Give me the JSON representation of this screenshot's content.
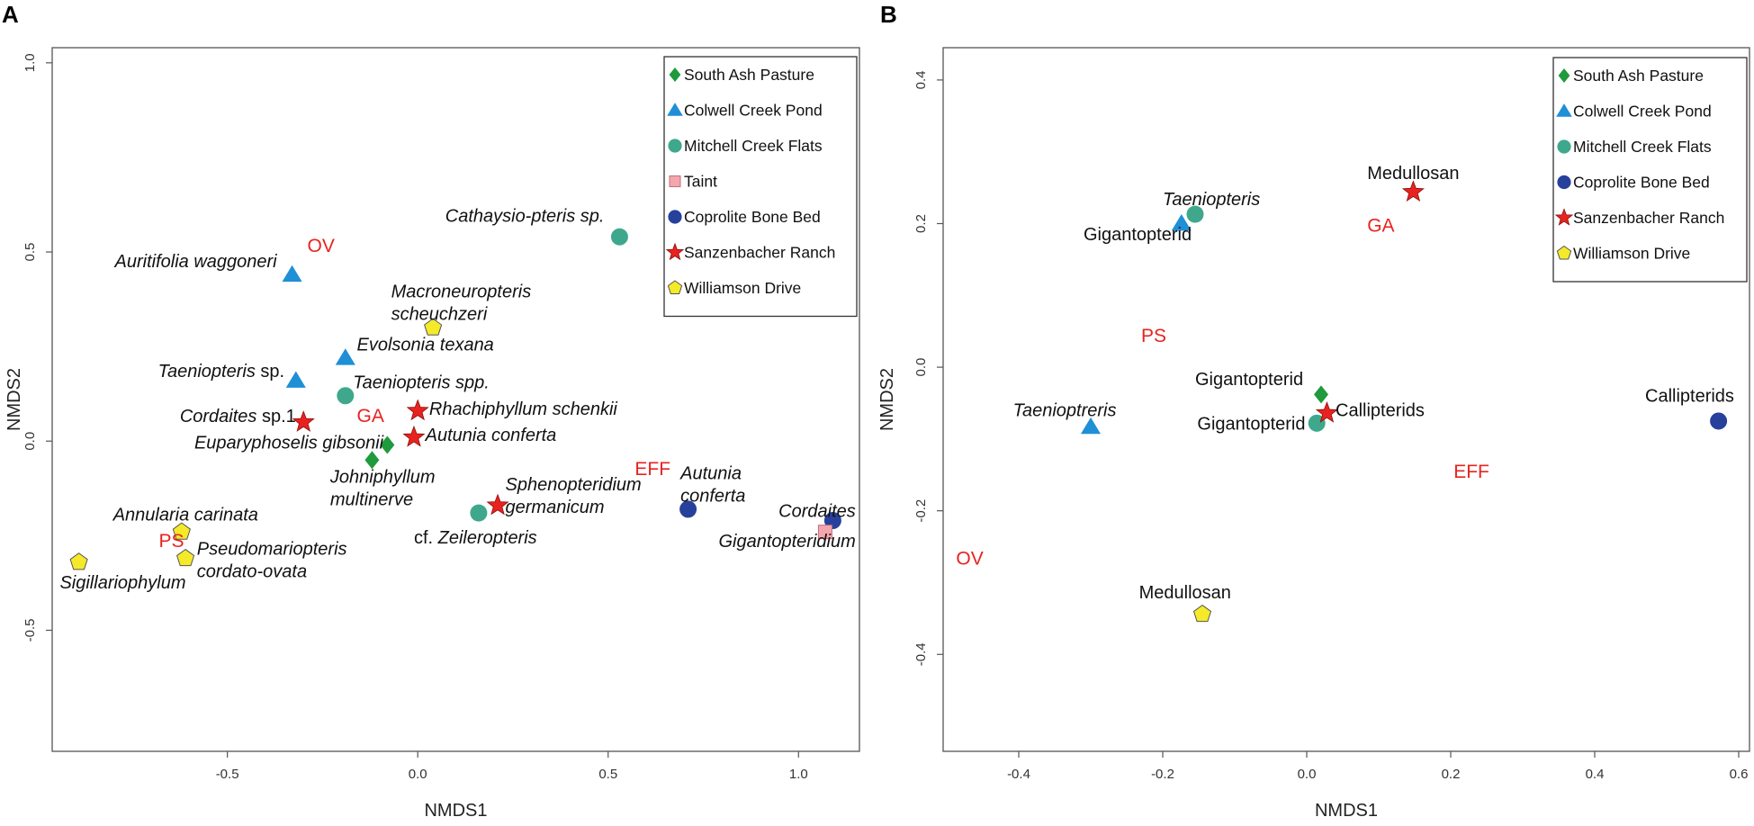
{
  "figure": {
    "colors": {
      "South Ash Pasture": "#1f9a3c",
      "Colwell Creek Pond": "#1f8fd6",
      "Mitchell Creek Flats": "#3fa88c",
      "Taint": "#f4a6ae",
      "Coprolite Bone Bed": "#27409b",
      "Sanzenbacher Ranch": "#e8231f",
      "Williamson Drive": "#f5ea2a",
      "site_label": "#e8231f"
    }
  },
  "chart_data": [
    {
      "panel": "A",
      "type": "scatter",
      "xlabel": "NMDS1",
      "ylabel": "NMDS2",
      "xlim": [
        -0.96,
        1.16
      ],
      "ylim": [
        -0.82,
        1.04
      ],
      "xticks": [
        -0.5,
        0.0,
        0.5,
        1.0
      ],
      "yticks": [
        -0.5,
        0.0,
        0.5,
        1.0
      ],
      "xtick_labels": [
        "-0.5",
        "0.0",
        "0.5",
        "1.0"
      ],
      "ytick_labels": [
        "-0.5",
        "0.0",
        "0.5",
        "1.0"
      ],
      "legend": [
        "South Ash Pasture",
        "Colwell Creek Pond",
        "Mitchell Creek Flats",
        "Taint",
        "Coprolite Bone Bed",
        "Sanzenbacher Ranch",
        "Williamson Drive"
      ],
      "points": [
        {
          "group": "Colwell Creek Pond",
          "x": -0.33,
          "y": 0.44
        },
        {
          "group": "Colwell Creek Pond",
          "x": -0.19,
          "y": 0.22
        },
        {
          "group": "Colwell Creek Pond",
          "x": -0.32,
          "y": 0.16
        },
        {
          "group": "Mitchell Creek Flats",
          "x": -0.19,
          "y": 0.12
        },
        {
          "group": "Mitchell Creek Flats",
          "x": 0.53,
          "y": 0.54
        },
        {
          "group": "Mitchell Creek Flats",
          "x": 0.16,
          "y": -0.19
        },
        {
          "group": "Sanzenbacher Ranch",
          "x": -0.3,
          "y": 0.05
        },
        {
          "group": "Sanzenbacher Ranch",
          "x": 0.0,
          "y": 0.08
        },
        {
          "group": "Sanzenbacher Ranch",
          "x": -0.01,
          "y": 0.01
        },
        {
          "group": "Sanzenbacher Ranch",
          "x": 0.21,
          "y": -0.17
        },
        {
          "group": "South Ash Pasture",
          "x": -0.08,
          "y": -0.01
        },
        {
          "group": "South Ash Pasture",
          "x": -0.12,
          "y": -0.05
        },
        {
          "group": "Williamson Drive",
          "x": 0.04,
          "y": 0.3
        },
        {
          "group": "Williamson Drive",
          "x": -0.62,
          "y": -0.24
        },
        {
          "group": "Williamson Drive",
          "x": -0.61,
          "y": -0.31
        },
        {
          "group": "Williamson Drive",
          "x": -0.89,
          "y": -0.32
        },
        {
          "group": "Coprolite Bone Bed",
          "x": 0.71,
          "y": -0.18
        },
        {
          "group": "Coprolite Bone Bed",
          "x": 1.09,
          "y": -0.21
        },
        {
          "group": "Taint",
          "x": 1.07,
          "y": -0.24
        }
      ],
      "labels": [
        {
          "text": "Auritifolia waggoneri",
          "italic": true,
          "x": -0.37,
          "y": 0.46,
          "anchor": "end"
        },
        {
          "text": "Evolsonia texana",
          "italic": true,
          "x": -0.16,
          "y": 0.24,
          "anchor": "start"
        },
        {
          "text": "Taeniopteris",
          "italic": true,
          "suffix": " sp.",
          "x": -0.35,
          "y": 0.17,
          "anchor": "end"
        },
        {
          "text": "Taeniopteris spp.",
          "italic": true,
          "x": -0.17,
          "y": 0.14,
          "anchor": "start"
        },
        {
          "text": "Cathaysio-pteris sp.",
          "italic": true,
          "x": 0.49,
          "y": 0.58,
          "anchor": "end"
        },
        {
          "text": "Macroneuropteris",
          "italic": true,
          "x": -0.07,
          "y": 0.38,
          "anchor": "start"
        },
        {
          "text": "scheuchzeri",
          "italic": true,
          "x": -0.07,
          "y": 0.32,
          "anchor": "start"
        },
        {
          "text": "Cordaites",
          "italic": true,
          "suffix": " sp.1",
          "x": -0.32,
          "y": 0.05,
          "anchor": "end"
        },
        {
          "text": "Rhachiphyllum schenkii",
          "italic": true,
          "x": 0.03,
          "y": 0.07,
          "anchor": "start"
        },
        {
          "text": "Autunia conferta",
          "italic": true,
          "x": 0.02,
          "y": 0.0,
          "anchor": "start"
        },
        {
          "text": "Euparyphoselis gibsonii",
          "italic": true,
          "x": -0.09,
          "y": -0.02,
          "anchor": "end"
        },
        {
          "text": "Johniphyllum",
          "italic": true,
          "x": -0.23,
          "y": -0.11,
          "anchor": "start"
        },
        {
          "text": "multinerve",
          "italic": true,
          "x": -0.23,
          "y": -0.17,
          "anchor": "start"
        },
        {
          "text": "Sphenopteridium",
          "italic": true,
          "x": 0.23,
          "y": -0.13,
          "anchor": "start"
        },
        {
          "text": "germanicum",
          "italic": true,
          "x": 0.23,
          "y": -0.19,
          "anchor": "start"
        },
        {
          "text": "cf. ",
          "italic": false,
          "suffix_italic": "Zeileropteris",
          "x": -0.01,
          "y": -0.27,
          "anchor": "start"
        },
        {
          "text": "Autunia",
          "italic": true,
          "x": 0.69,
          "y": -0.1,
          "anchor": "start"
        },
        {
          "text": "conferta",
          "italic": true,
          "x": 0.69,
          "y": -0.16,
          "anchor": "start"
        },
        {
          "text": "Cordaites",
          "italic": true,
          "x": 1.15,
          "y": -0.2,
          "anchor": "end"
        },
        {
          "text": "Gigantopteridium",
          "italic": true,
          "x": 1.15,
          "y": -0.28,
          "anchor": "end"
        },
        {
          "text": "Annularia carinata",
          "italic": true,
          "x": -0.8,
          "y": -0.21,
          "anchor": "start"
        },
        {
          "text": "Pseudomariopteris",
          "italic": true,
          "x": -0.58,
          "y": -0.3,
          "anchor": "start"
        },
        {
          "text": "cordato-ovata",
          "italic": true,
          "x": -0.58,
          "y": -0.36,
          "anchor": "start"
        },
        {
          "text": "Sigillariophylum",
          "italic": true,
          "x": -0.94,
          "y": -0.39,
          "anchor": "start"
        }
      ],
      "site_labels": [
        {
          "text": "OV",
          "x": -0.29,
          "y": 0.5
        },
        {
          "text": "GA",
          "x": -0.16,
          "y": 0.05
        },
        {
          "text": "EFF",
          "x": 0.57,
          "y": -0.09
        },
        {
          "text": "PS",
          "x": -0.68,
          "y": -0.28
        }
      ]
    },
    {
      "panel": "B",
      "type": "scatter",
      "xlabel": "NMDS1",
      "ylabel": "NMDS2",
      "xlim": [
        -0.505,
        0.615
      ],
      "ylim": [
        -0.535,
        0.445
      ],
      "xticks": [
        -0.4,
        -0.2,
        0.0,
        0.2,
        0.4,
        0.6
      ],
      "yticks": [
        -0.4,
        -0.2,
        0.0,
        0.2,
        0.4
      ],
      "xtick_labels": [
        "-0.4",
        "-0.2",
        "0.0",
        "0.2",
        "0.4",
        "0.6"
      ],
      "ytick_labels": [
        "-0.4",
        "-0.2",
        "0.0",
        "0.2",
        "0.4"
      ],
      "legend": [
        "South Ash Pasture",
        "Colwell Creek Pond",
        "Mitchell Creek Flats",
        "Coprolite Bone Bed",
        "Sanzenbacher Ranch",
        "Williamson Drive"
      ],
      "points": [
        {
          "group": "Colwell Creek Pond",
          "x": -0.174,
          "y": 0.2
        },
        {
          "group": "Mitchell Creek Flats",
          "x": -0.155,
          "y": 0.213
        },
        {
          "group": "Sanzenbacher Ranch",
          "x": 0.148,
          "y": 0.244
        },
        {
          "group": "Colwell Creek Pond",
          "x": -0.3,
          "y": -0.083
        },
        {
          "group": "South Ash Pasture",
          "x": 0.02,
          "y": -0.038
        },
        {
          "group": "Mitchell Creek Flats",
          "x": 0.014,
          "y": -0.078
        },
        {
          "group": "Sanzenbacher Ranch",
          "x": 0.028,
          "y": -0.064
        },
        {
          "group": "Coprolite Bone Bed",
          "x": 0.572,
          "y": -0.075
        },
        {
          "group": "Williamson Drive",
          "x": -0.145,
          "y": -0.344
        }
      ],
      "labels": [
        {
          "text": "Taeniopteris",
          "italic": true,
          "x": -0.2,
          "y": 0.226,
          "anchor": "start"
        },
        {
          "text": "Gigantopterid",
          "italic": false,
          "x": -0.31,
          "y": 0.177,
          "anchor": "start"
        },
        {
          "text": "Medullosan",
          "italic": false,
          "x": 0.084,
          "y": 0.262,
          "anchor": "start"
        },
        {
          "text": "Gigantopterid",
          "italic": false,
          "x": -0.155,
          "y": -0.025,
          "anchor": "start"
        },
        {
          "text": "Gigantopterid",
          "italic": false,
          "x": -0.152,
          "y": -0.087,
          "anchor": "start"
        },
        {
          "text": "Callipterids",
          "italic": false,
          "x": 0.04,
          "y": -0.068,
          "anchor": "start"
        },
        {
          "text": "Taenioptreris",
          "italic": true,
          "x": -0.408,
          "y": -0.068,
          "anchor": "start"
        },
        {
          "text": "Callipterids",
          "italic": false,
          "x": 0.47,
          "y": -0.048,
          "anchor": "start"
        },
        {
          "text": "Medullosan",
          "italic": false,
          "x": -0.233,
          "y": -0.322,
          "anchor": "start"
        }
      ],
      "site_labels": [
        {
          "text": "GA",
          "x": 0.084,
          "y": 0.189
        },
        {
          "text": "PS",
          "x": -0.23,
          "y": 0.035
        },
        {
          "text": "EFF",
          "x": 0.204,
          "y": -0.154
        },
        {
          "text": "OV",
          "x": -0.487,
          "y": -0.275
        }
      ]
    }
  ]
}
